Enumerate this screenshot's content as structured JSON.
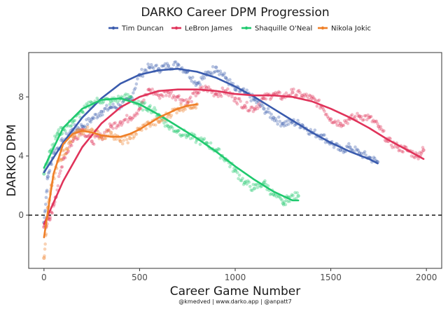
{
  "chart_data": {
    "type": "scatter",
    "title": "DARKO Career DPM Progression",
    "xlabel": "Career Game Number",
    "ylabel": "DARKO DPM",
    "caption": "@kmedved | www.darko.app | @anpatt7",
    "xlim": [
      -80,
      2080
    ],
    "ylim": [
      -3.6,
      11.0
    ],
    "x_ticks": [
      0,
      500,
      1000,
      1500,
      2000
    ],
    "y_ticks": [
      0,
      4,
      8
    ],
    "reference_line": {
      "y": 0,
      "style": "dashed"
    },
    "legend_position": "top",
    "series": [
      {
        "name": "Tim Duncan",
        "color": "#3a5bad",
        "points": [
          [
            0,
            -0.5
          ],
          [
            20,
            2.6
          ],
          [
            50,
            4.2
          ],
          [
            100,
            5.0
          ],
          [
            150,
            5.8
          ],
          [
            200,
            6.0
          ],
          [
            250,
            6.5
          ],
          [
            300,
            7.0
          ],
          [
            350,
            7.3
          ],
          [
            400,
            7.4
          ],
          [
            450,
            7.8
          ],
          [
            500,
            9.5
          ],
          [
            550,
            10.0
          ],
          [
            600,
            9.9
          ],
          [
            650,
            10.1
          ],
          [
            700,
            10.2
          ],
          [
            750,
            9.7
          ],
          [
            800,
            8.9
          ],
          [
            850,
            9.5
          ],
          [
            900,
            10.0
          ],
          [
            950,
            9.3
          ],
          [
            1000,
            8.5
          ],
          [
            1050,
            8.3
          ],
          [
            1100,
            7.8
          ],
          [
            1150,
            7.2
          ],
          [
            1200,
            6.6
          ],
          [
            1250,
            6.2
          ],
          [
            1300,
            6.3
          ],
          [
            1350,
            6.1
          ],
          [
            1400,
            5.6
          ],
          [
            1450,
            5.4
          ],
          [
            1500,
            4.9
          ],
          [
            1550,
            4.4
          ],
          [
            1600,
            4.6
          ],
          [
            1650,
            4.2
          ],
          [
            1700,
            3.9
          ],
          [
            1745,
            3.6
          ]
        ],
        "fit": [
          [
            0,
            2.9
          ],
          [
            100,
            4.9
          ],
          [
            200,
            6.6
          ],
          [
            300,
            7.9
          ],
          [
            400,
            8.9
          ],
          [
            500,
            9.5
          ],
          [
            600,
            9.8
          ],
          [
            700,
            9.9
          ],
          [
            800,
            9.7
          ],
          [
            900,
            9.3
          ],
          [
            1000,
            8.7
          ],
          [
            1100,
            8.0
          ],
          [
            1200,
            7.2
          ],
          [
            1300,
            6.4
          ],
          [
            1400,
            5.6
          ],
          [
            1500,
            4.9
          ],
          [
            1600,
            4.3
          ],
          [
            1700,
            3.8
          ],
          [
            1745,
            3.5
          ]
        ]
      },
      {
        "name": "LeBron James",
        "color": "#e0335a",
        "points": [
          [
            0,
            -0.8
          ],
          [
            30,
            -0.3
          ],
          [
            60,
            1.2
          ],
          [
            100,
            3.8
          ],
          [
            150,
            5.0
          ],
          [
            200,
            5.8
          ],
          [
            250,
            5.0
          ],
          [
            300,
            5.3
          ],
          [
            350,
            6.0
          ],
          [
            400,
            6.3
          ],
          [
            450,
            6.6
          ],
          [
            500,
            7.2
          ],
          [
            550,
            8.5
          ],
          [
            600,
            8.1
          ],
          [
            650,
            8.3
          ],
          [
            700,
            8.0
          ],
          [
            750,
            7.6
          ],
          [
            800,
            8.3
          ],
          [
            850,
            8.6
          ],
          [
            900,
            8.2
          ],
          [
            950,
            8.4
          ],
          [
            1000,
            7.9
          ],
          [
            1050,
            7.4
          ],
          [
            1100,
            7.2
          ],
          [
            1150,
            7.9
          ],
          [
            1200,
            8.2
          ],
          [
            1250,
            8.0
          ],
          [
            1300,
            8.3
          ],
          [
            1350,
            8.1
          ],
          [
            1400,
            7.9
          ],
          [
            1450,
            7.4
          ],
          [
            1500,
            6.5
          ],
          [
            1550,
            6.2
          ],
          [
            1600,
            6.5
          ],
          [
            1650,
            6.7
          ],
          [
            1700,
            6.6
          ],
          [
            1750,
            6.0
          ],
          [
            1800,
            5.0
          ],
          [
            1850,
            4.6
          ],
          [
            1900,
            4.4
          ],
          [
            1950,
            4.0
          ],
          [
            1985,
            4.4
          ]
        ],
        "fit": [
          [
            0,
            -0.6
          ],
          [
            100,
            2.3
          ],
          [
            200,
            4.6
          ],
          [
            300,
            6.2
          ],
          [
            400,
            7.3
          ],
          [
            500,
            8.0
          ],
          [
            600,
            8.4
          ],
          [
            700,
            8.5
          ],
          [
            800,
            8.5
          ],
          [
            900,
            8.4
          ],
          [
            1000,
            8.2
          ],
          [
            1100,
            8.1
          ],
          [
            1200,
            8.1
          ],
          [
            1300,
            8.0
          ],
          [
            1400,
            7.7
          ],
          [
            1500,
            7.2
          ],
          [
            1600,
            6.6
          ],
          [
            1700,
            5.9
          ],
          [
            1800,
            5.1
          ],
          [
            1900,
            4.4
          ],
          [
            1985,
            3.8
          ]
        ]
      },
      {
        "name": "Shaquille O'Neal",
        "color": "#1fc96e",
        "points": [
          [
            0,
            2.8
          ],
          [
            30,
            4.3
          ],
          [
            70,
            5.5
          ],
          [
            100,
            5.8
          ],
          [
            150,
            6.3
          ],
          [
            200,
            7.0
          ],
          [
            250,
            7.6
          ],
          [
            300,
            7.8
          ],
          [
            350,
            7.7
          ],
          [
            400,
            7.9
          ],
          [
            450,
            8.0
          ],
          [
            500,
            7.4
          ],
          [
            550,
            7.3
          ],
          [
            600,
            6.8
          ],
          [
            650,
            6.0
          ],
          [
            700,
            5.7
          ],
          [
            750,
            5.4
          ],
          [
            800,
            5.1
          ],
          [
            850,
            4.9
          ],
          [
            900,
            4.4
          ],
          [
            950,
            3.8
          ],
          [
            1000,
            3.0
          ],
          [
            1050,
            2.2
          ],
          [
            1100,
            1.8
          ],
          [
            1150,
            2.2
          ],
          [
            1200,
            1.4
          ],
          [
            1250,
            0.8
          ],
          [
            1280,
            1.2
          ],
          [
            1330,
            1.3
          ]
        ],
        "fit": [
          [
            0,
            3.2
          ],
          [
            100,
            5.9
          ],
          [
            200,
            7.2
          ],
          [
            300,
            7.8
          ],
          [
            400,
            7.9
          ],
          [
            500,
            7.5
          ],
          [
            600,
            6.8
          ],
          [
            700,
            6.0
          ],
          [
            800,
            5.2
          ],
          [
            900,
            4.3
          ],
          [
            1000,
            3.3
          ],
          [
            1100,
            2.4
          ],
          [
            1200,
            1.6
          ],
          [
            1300,
            1.0
          ],
          [
            1330,
            1.0
          ]
        ]
      },
      {
        "name": "Nikola Jokic",
        "color": "#ef7f27",
        "points": [
          [
            0,
            -2.9
          ],
          [
            20,
            0.5
          ],
          [
            40,
            2.0
          ],
          [
            80,
            3.8
          ],
          [
            120,
            4.5
          ],
          [
            160,
            5.4
          ],
          [
            200,
            5.7
          ],
          [
            250,
            5.8
          ],
          [
            300,
            5.3
          ],
          [
            350,
            5.6
          ],
          [
            400,
            5.0
          ],
          [
            450,
            5.2
          ],
          [
            500,
            5.8
          ],
          [
            550,
            6.2
          ],
          [
            600,
            6.3
          ],
          [
            650,
            6.8
          ],
          [
            700,
            7.2
          ],
          [
            750,
            7.4
          ],
          [
            800,
            7.5
          ]
        ],
        "fit": [
          [
            0,
            -1.5
          ],
          [
            50,
            2.8
          ],
          [
            100,
            4.8
          ],
          [
            150,
            5.5
          ],
          [
            200,
            5.7
          ],
          [
            250,
            5.6
          ],
          [
            300,
            5.4
          ],
          [
            350,
            5.3
          ],
          [
            400,
            5.3
          ],
          [
            450,
            5.5
          ],
          [
            500,
            5.8
          ],
          [
            550,
            6.2
          ],
          [
            600,
            6.6
          ],
          [
            650,
            6.9
          ],
          [
            700,
            7.2
          ],
          [
            750,
            7.4
          ],
          [
            800,
            7.5
          ]
        ]
      }
    ]
  }
}
